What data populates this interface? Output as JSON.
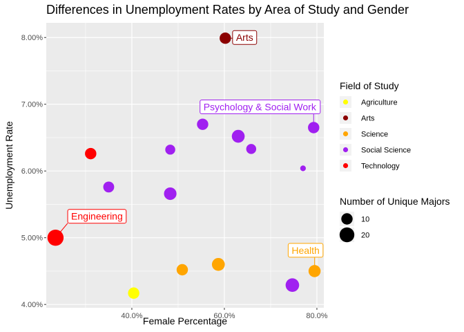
{
  "chart_data": {
    "type": "scatter",
    "title": "Differences in Unemployment Rates by Area of Study and Gender",
    "xlabel": "Female Percentage",
    "ylabel": "Unemployment Rate",
    "xlim": [
      0.215,
      0.815
    ],
    "ylim": [
      0.0395,
      0.0822
    ],
    "x_ticks": [
      {
        "value": 0.4,
        "label": "40.0%"
      },
      {
        "value": 0.6,
        "label": "60.0%"
      },
      {
        "value": 0.8,
        "label": "80.0%"
      }
    ],
    "y_ticks": [
      {
        "value": 0.04,
        "label": "4.00%"
      },
      {
        "value": 0.05,
        "label": "5.00%"
      },
      {
        "value": 0.06,
        "label": "6.00%"
      },
      {
        "value": 0.07,
        "label": "7.00%"
      },
      {
        "value": 0.08,
        "label": "8.00%"
      }
    ],
    "grid": true,
    "color_legend": {
      "title": "Field of Study",
      "items": [
        {
          "name": "Agriculture",
          "color": "#FFFF00"
        },
        {
          "name": "Arts",
          "color": "#8B0000"
        },
        {
          "name": "Science",
          "color": "#FFA500"
        },
        {
          "name": "Social Science",
          "color": "#A020F0"
        },
        {
          "name": "Technology",
          "color": "#FF0000"
        }
      ]
    },
    "size_legend": {
      "title": "Number of Unique Majors",
      "items": [
        {
          "label": "10",
          "value": 10
        },
        {
          "label": "20",
          "value": 20
        }
      ]
    },
    "points": [
      {
        "field": "Arts",
        "x": 0.602,
        "y": 0.0799,
        "size": 10
      },
      {
        "field": "Social Science",
        "x": 0.553,
        "y": 0.067,
        "size": 10
      },
      {
        "field": "Social Science",
        "x": 0.63,
        "y": 0.0652,
        "size": 14
      },
      {
        "field": "Social Science",
        "x": 0.793,
        "y": 0.0665,
        "size": 10
      },
      {
        "field": "Social Science",
        "x": 0.483,
        "y": 0.0632,
        "size": 7
      },
      {
        "field": "Social Science",
        "x": 0.658,
        "y": 0.0633,
        "size": 7
      },
      {
        "field": "Social Science",
        "x": 0.77,
        "y": 0.0604,
        "size": 1
      },
      {
        "field": "Technology",
        "x": 0.311,
        "y": 0.0626,
        "size": 10
      },
      {
        "field": "Social Science",
        "x": 0.35,
        "y": 0.0576,
        "size": 9
      },
      {
        "field": "Social Science",
        "x": 0.483,
        "y": 0.0566,
        "size": 13
      },
      {
        "field": "Technology",
        "x": 0.235,
        "y": 0.05,
        "size": 25
      },
      {
        "field": "Science",
        "x": 0.509,
        "y": 0.0452,
        "size": 10
      },
      {
        "field": "Science",
        "x": 0.587,
        "y": 0.046,
        "size": 14
      },
      {
        "field": "Science",
        "x": 0.795,
        "y": 0.045,
        "size": 12
      },
      {
        "field": "Social Science",
        "x": 0.747,
        "y": 0.0429,
        "size": 16
      },
      {
        "field": "Agriculture",
        "x": 0.404,
        "y": 0.0417,
        "size": 10
      }
    ],
    "annotations": [
      {
        "text": "Arts",
        "color": "#8B0000",
        "x": 0.602,
        "y": 0.0799
      },
      {
        "text": "Psychology & Social Work",
        "color": "#A020F0",
        "x": 0.793,
        "y": 0.0665
      },
      {
        "text": "Engineering",
        "color": "#FF0000",
        "x": 0.235,
        "y": 0.05
      },
      {
        "text": "Health",
        "color": "#FFA500",
        "x": 0.795,
        "y": 0.045
      }
    ]
  }
}
